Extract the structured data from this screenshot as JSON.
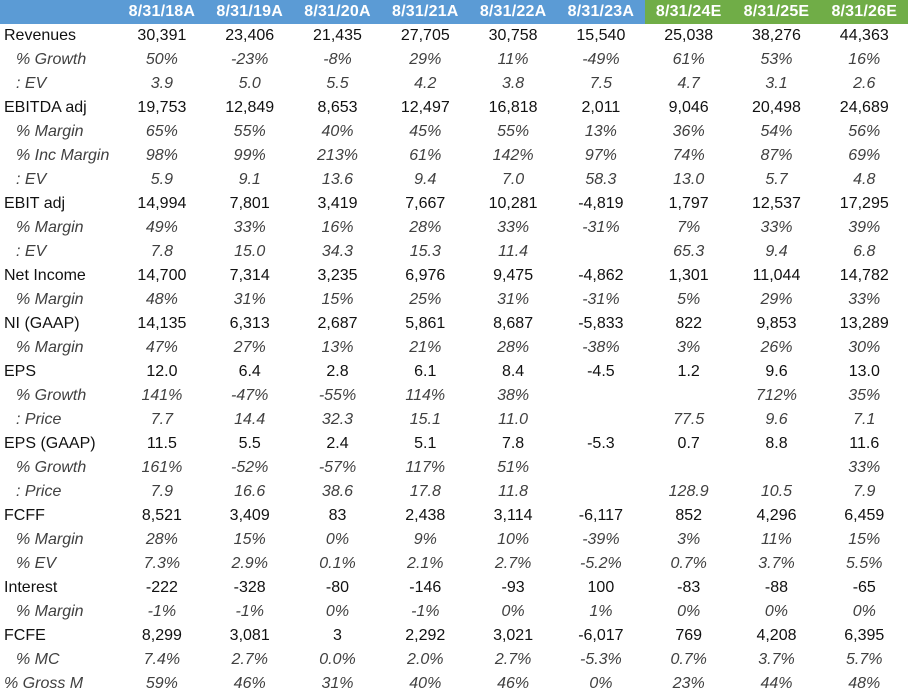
{
  "header": {
    "columns": [
      {
        "label": "8/31/18A",
        "type": "actual"
      },
      {
        "label": "8/31/19A",
        "type": "actual"
      },
      {
        "label": "8/31/20A",
        "type": "actual"
      },
      {
        "label": "8/31/21A",
        "type": "actual"
      },
      {
        "label": "8/31/22A",
        "type": "actual"
      },
      {
        "label": "8/31/23A",
        "type": "actual"
      },
      {
        "label": "8/31/24E",
        "type": "estimate"
      },
      {
        "label": "8/31/25E",
        "type": "estimate"
      },
      {
        "label": "8/31/26E",
        "type": "estimate"
      }
    ],
    "colors": {
      "actual": "#5b9bd5",
      "estimate": "#70ad47"
    }
  },
  "rows": [
    {
      "label": "Revenues",
      "kind": "main",
      "values": [
        "30,391",
        "23,406",
        "21,435",
        "27,705",
        "30,758",
        "15,540",
        "25,038",
        "38,276",
        "44,363"
      ]
    },
    {
      "label": "% Growth",
      "kind": "sub",
      "values": [
        "50%",
        "-23%",
        "-8%",
        "29%",
        "11%",
        "-49%",
        "61%",
        "53%",
        "16%"
      ]
    },
    {
      "label": ": EV",
      "kind": "sub",
      "values": [
        "3.9",
        "5.0",
        "5.5",
        "4.2",
        "3.8",
        "7.5",
        "4.7",
        "3.1",
        "2.6"
      ]
    },
    {
      "label": "EBITDA adj",
      "kind": "main",
      "values": [
        "19,753",
        "12,849",
        "8,653",
        "12,497",
        "16,818",
        "2,011",
        "9,046",
        "20,498",
        "24,689"
      ]
    },
    {
      "label": "% Margin",
      "kind": "sub",
      "values": [
        "65%",
        "55%",
        "40%",
        "45%",
        "55%",
        "13%",
        "36%",
        "54%",
        "56%"
      ]
    },
    {
      "label": "% Inc Margin",
      "kind": "sub",
      "values": [
        "98%",
        "99%",
        "213%",
        "61%",
        "142%",
        "97%",
        "74%",
        "87%",
        "69%"
      ]
    },
    {
      "label": ": EV",
      "kind": "sub",
      "values": [
        "5.9",
        "9.1",
        "13.6",
        "9.4",
        "7.0",
        "58.3",
        "13.0",
        "5.7",
        "4.8"
      ]
    },
    {
      "label": "EBIT adj",
      "kind": "main",
      "values": [
        "14,994",
        "7,801",
        "3,419",
        "7,667",
        "10,281",
        "-4,819",
        "1,797",
        "12,537",
        "17,295"
      ]
    },
    {
      "label": "% Margin",
      "kind": "sub",
      "values": [
        "49%",
        "33%",
        "16%",
        "28%",
        "33%",
        "-31%",
        "7%",
        "33%",
        "39%"
      ]
    },
    {
      "label": ": EV",
      "kind": "sub",
      "values": [
        "7.8",
        "15.0",
        "34.3",
        "15.3",
        "11.4",
        "",
        "65.3",
        "9.4",
        "6.8"
      ]
    },
    {
      "label": "Net Income",
      "kind": "main",
      "values": [
        "14,700",
        "7,314",
        "3,235",
        "6,976",
        "9,475",
        "-4,862",
        "1,301",
        "11,044",
        "14,782"
      ]
    },
    {
      "label": "% Margin",
      "kind": "sub",
      "values": [
        "48%",
        "31%",
        "15%",
        "25%",
        "31%",
        "-31%",
        "5%",
        "29%",
        "33%"
      ]
    },
    {
      "label": "NI (GAAP)",
      "kind": "main",
      "values": [
        "14,135",
        "6,313",
        "2,687",
        "5,861",
        "8,687",
        "-5,833",
        "822",
        "9,853",
        "13,289"
      ]
    },
    {
      "label": "% Margin",
      "kind": "sub",
      "values": [
        "47%",
        "27%",
        "13%",
        "21%",
        "28%",
        "-38%",
        "3%",
        "26%",
        "30%"
      ]
    },
    {
      "label": "EPS",
      "kind": "main",
      "values": [
        "12.0",
        "6.4",
        "2.8",
        "6.1",
        "8.4",
        "-4.5",
        "1.2",
        "9.6",
        "13.0"
      ]
    },
    {
      "label": "% Growth",
      "kind": "sub",
      "values": [
        "141%",
        "-47%",
        "-55%",
        "114%",
        "38%",
        "",
        "",
        "712%",
        "35%"
      ]
    },
    {
      "label": ": Price",
      "kind": "sub",
      "values": [
        "7.7",
        "14.4",
        "32.3",
        "15.1",
        "11.0",
        "",
        "77.5",
        "9.6",
        "7.1"
      ]
    },
    {
      "label": "EPS (GAAP)",
      "kind": "main",
      "values": [
        "11.5",
        "5.5",
        "2.4",
        "5.1",
        "7.8",
        "-5.3",
        "0.7",
        "8.8",
        "11.6"
      ]
    },
    {
      "label": "% Growth",
      "kind": "sub",
      "values": [
        "161%",
        "-52%",
        "-57%",
        "117%",
        "51%",
        "",
        "",
        "",
        "33%"
      ]
    },
    {
      "label": ": Price",
      "kind": "sub",
      "values": [
        "7.9",
        "16.6",
        "38.6",
        "17.8",
        "11.8",
        "",
        "128.9",
        "10.5",
        "7.9"
      ]
    },
    {
      "label": "FCFF",
      "kind": "main",
      "values": [
        "8,521",
        "3,409",
        "83",
        "2,438",
        "3,114",
        "-6,117",
        "852",
        "4,296",
        "6,459"
      ]
    },
    {
      "label": "% Margin",
      "kind": "sub",
      "values": [
        "28%",
        "15%",
        "0%",
        "9%",
        "10%",
        "-39%",
        "3%",
        "11%",
        "15%"
      ]
    },
    {
      "label": "% EV",
      "kind": "sub",
      "values": [
        "7.3%",
        "2.9%",
        "0.1%",
        "2.1%",
        "2.7%",
        "-5.2%",
        "0.7%",
        "3.7%",
        "5.5%"
      ]
    },
    {
      "label": "Interest",
      "kind": "main",
      "values": [
        "-222",
        "-328",
        "-80",
        "-146",
        "-93",
        "100",
        "-83",
        "-88",
        "-65"
      ]
    },
    {
      "label": "% Margin",
      "kind": "sub",
      "values": [
        "-1%",
        "-1%",
        "0%",
        "-1%",
        "0%",
        "1%",
        "0%",
        "0%",
        "0%"
      ]
    },
    {
      "label": "FCFE",
      "kind": "main",
      "values": [
        "8,299",
        "3,081",
        "3",
        "2,292",
        "3,021",
        "-6,017",
        "769",
        "4,208",
        "6,395"
      ]
    },
    {
      "label": "% MC",
      "kind": "sub",
      "values": [
        "7.4%",
        "2.7%",
        "0.0%",
        "2.0%",
        "2.7%",
        "-5.3%",
        "0.7%",
        "3.7%",
        "5.7%"
      ]
    },
    {
      "label": "% Gross M",
      "kind": "sub-flush",
      "values": [
        "59%",
        "46%",
        "31%",
        "40%",
        "46%",
        "0%",
        "23%",
        "44%",
        "48%"
      ]
    }
  ]
}
